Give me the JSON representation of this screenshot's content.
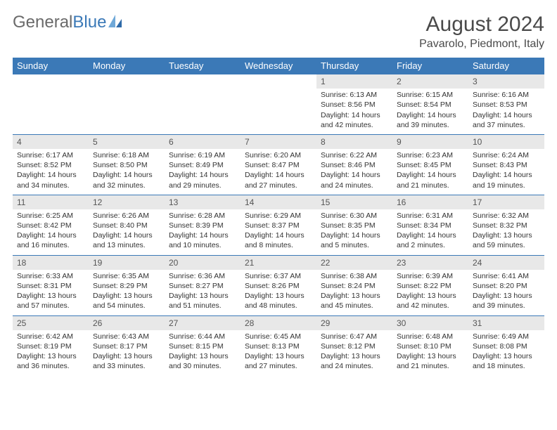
{
  "brand": {
    "part1": "General",
    "part2": "Blue"
  },
  "title": "August 2024",
  "location": "Pavarolo, Piedmont, Italy",
  "colors": {
    "header_bg": "#3b79b7",
    "header_text": "#ffffff",
    "daynum_bg": "#e8e8e8",
    "border": "#3b79b7",
    "text": "#333333",
    "title_text": "#4a4a4a",
    "logo_gray": "#6a6a6a",
    "logo_blue": "#3b79b7"
  },
  "weekdays": [
    "Sunday",
    "Monday",
    "Tuesday",
    "Wednesday",
    "Thursday",
    "Friday",
    "Saturday"
  ],
  "weeks": [
    {
      "nums": [
        "",
        "",
        "",
        "",
        "1",
        "2",
        "3"
      ],
      "cells": [
        {
          "empty": true
        },
        {
          "empty": true
        },
        {
          "empty": true
        },
        {
          "empty": true
        },
        {
          "sunrise": "Sunrise: 6:13 AM",
          "sunset": "Sunset: 8:56 PM",
          "day1": "Daylight: 14 hours",
          "day2": "and 42 minutes."
        },
        {
          "sunrise": "Sunrise: 6:15 AM",
          "sunset": "Sunset: 8:54 PM",
          "day1": "Daylight: 14 hours",
          "day2": "and 39 minutes."
        },
        {
          "sunrise": "Sunrise: 6:16 AM",
          "sunset": "Sunset: 8:53 PM",
          "day1": "Daylight: 14 hours",
          "day2": "and 37 minutes."
        }
      ]
    },
    {
      "nums": [
        "4",
        "5",
        "6",
        "7",
        "8",
        "9",
        "10"
      ],
      "cells": [
        {
          "sunrise": "Sunrise: 6:17 AM",
          "sunset": "Sunset: 8:52 PM",
          "day1": "Daylight: 14 hours",
          "day2": "and 34 minutes."
        },
        {
          "sunrise": "Sunrise: 6:18 AM",
          "sunset": "Sunset: 8:50 PM",
          "day1": "Daylight: 14 hours",
          "day2": "and 32 minutes."
        },
        {
          "sunrise": "Sunrise: 6:19 AM",
          "sunset": "Sunset: 8:49 PM",
          "day1": "Daylight: 14 hours",
          "day2": "and 29 minutes."
        },
        {
          "sunrise": "Sunrise: 6:20 AM",
          "sunset": "Sunset: 8:47 PM",
          "day1": "Daylight: 14 hours",
          "day2": "and 27 minutes."
        },
        {
          "sunrise": "Sunrise: 6:22 AM",
          "sunset": "Sunset: 8:46 PM",
          "day1": "Daylight: 14 hours",
          "day2": "and 24 minutes."
        },
        {
          "sunrise": "Sunrise: 6:23 AM",
          "sunset": "Sunset: 8:45 PM",
          "day1": "Daylight: 14 hours",
          "day2": "and 21 minutes."
        },
        {
          "sunrise": "Sunrise: 6:24 AM",
          "sunset": "Sunset: 8:43 PM",
          "day1": "Daylight: 14 hours",
          "day2": "and 19 minutes."
        }
      ]
    },
    {
      "nums": [
        "11",
        "12",
        "13",
        "14",
        "15",
        "16",
        "17"
      ],
      "cells": [
        {
          "sunrise": "Sunrise: 6:25 AM",
          "sunset": "Sunset: 8:42 PM",
          "day1": "Daylight: 14 hours",
          "day2": "and 16 minutes."
        },
        {
          "sunrise": "Sunrise: 6:26 AM",
          "sunset": "Sunset: 8:40 PM",
          "day1": "Daylight: 14 hours",
          "day2": "and 13 minutes."
        },
        {
          "sunrise": "Sunrise: 6:28 AM",
          "sunset": "Sunset: 8:39 PM",
          "day1": "Daylight: 14 hours",
          "day2": "and 10 minutes."
        },
        {
          "sunrise": "Sunrise: 6:29 AM",
          "sunset": "Sunset: 8:37 PM",
          "day1": "Daylight: 14 hours",
          "day2": "and 8 minutes."
        },
        {
          "sunrise": "Sunrise: 6:30 AM",
          "sunset": "Sunset: 8:35 PM",
          "day1": "Daylight: 14 hours",
          "day2": "and 5 minutes."
        },
        {
          "sunrise": "Sunrise: 6:31 AM",
          "sunset": "Sunset: 8:34 PM",
          "day1": "Daylight: 14 hours",
          "day2": "and 2 minutes."
        },
        {
          "sunrise": "Sunrise: 6:32 AM",
          "sunset": "Sunset: 8:32 PM",
          "day1": "Daylight: 13 hours",
          "day2": "and 59 minutes."
        }
      ]
    },
    {
      "nums": [
        "18",
        "19",
        "20",
        "21",
        "22",
        "23",
        "24"
      ],
      "cells": [
        {
          "sunrise": "Sunrise: 6:33 AM",
          "sunset": "Sunset: 8:31 PM",
          "day1": "Daylight: 13 hours",
          "day2": "and 57 minutes."
        },
        {
          "sunrise": "Sunrise: 6:35 AM",
          "sunset": "Sunset: 8:29 PM",
          "day1": "Daylight: 13 hours",
          "day2": "and 54 minutes."
        },
        {
          "sunrise": "Sunrise: 6:36 AM",
          "sunset": "Sunset: 8:27 PM",
          "day1": "Daylight: 13 hours",
          "day2": "and 51 minutes."
        },
        {
          "sunrise": "Sunrise: 6:37 AM",
          "sunset": "Sunset: 8:26 PM",
          "day1": "Daylight: 13 hours",
          "day2": "and 48 minutes."
        },
        {
          "sunrise": "Sunrise: 6:38 AM",
          "sunset": "Sunset: 8:24 PM",
          "day1": "Daylight: 13 hours",
          "day2": "and 45 minutes."
        },
        {
          "sunrise": "Sunrise: 6:39 AM",
          "sunset": "Sunset: 8:22 PM",
          "day1": "Daylight: 13 hours",
          "day2": "and 42 minutes."
        },
        {
          "sunrise": "Sunrise: 6:41 AM",
          "sunset": "Sunset: 8:20 PM",
          "day1": "Daylight: 13 hours",
          "day2": "and 39 minutes."
        }
      ]
    },
    {
      "nums": [
        "25",
        "26",
        "27",
        "28",
        "29",
        "30",
        "31"
      ],
      "cells": [
        {
          "sunrise": "Sunrise: 6:42 AM",
          "sunset": "Sunset: 8:19 PM",
          "day1": "Daylight: 13 hours",
          "day2": "and 36 minutes."
        },
        {
          "sunrise": "Sunrise: 6:43 AM",
          "sunset": "Sunset: 8:17 PM",
          "day1": "Daylight: 13 hours",
          "day2": "and 33 minutes."
        },
        {
          "sunrise": "Sunrise: 6:44 AM",
          "sunset": "Sunset: 8:15 PM",
          "day1": "Daylight: 13 hours",
          "day2": "and 30 minutes."
        },
        {
          "sunrise": "Sunrise: 6:45 AM",
          "sunset": "Sunset: 8:13 PM",
          "day1": "Daylight: 13 hours",
          "day2": "and 27 minutes."
        },
        {
          "sunrise": "Sunrise: 6:47 AM",
          "sunset": "Sunset: 8:12 PM",
          "day1": "Daylight: 13 hours",
          "day2": "and 24 minutes."
        },
        {
          "sunrise": "Sunrise: 6:48 AM",
          "sunset": "Sunset: 8:10 PM",
          "day1": "Daylight: 13 hours",
          "day2": "and 21 minutes."
        },
        {
          "sunrise": "Sunrise: 6:49 AM",
          "sunset": "Sunset: 8:08 PM",
          "day1": "Daylight: 13 hours",
          "day2": "and 18 minutes."
        }
      ]
    }
  ]
}
